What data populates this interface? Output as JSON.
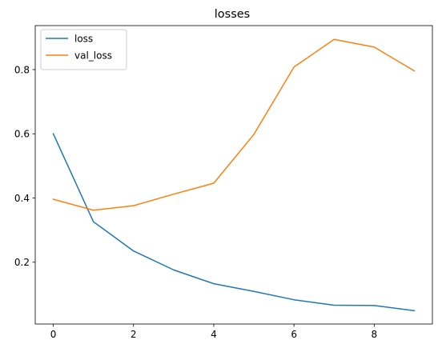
{
  "chart_data": {
    "type": "line",
    "title": "losses",
    "xlabel": "",
    "ylabel": "",
    "x": [
      0,
      1,
      2,
      3,
      4,
      5,
      6,
      7,
      8,
      9
    ],
    "xlim": [
      -0.45,
      9.45
    ],
    "ylim": [
      0.0075,
      0.937
    ],
    "xticks": [
      0,
      2,
      4,
      6,
      8
    ],
    "yticks": [
      0.2,
      0.4,
      0.6,
      0.8
    ],
    "xtick_labels": [
      "0",
      "2",
      "4",
      "6",
      "8"
    ],
    "ytick_labels": [
      "0.2",
      "0.4",
      "0.6",
      "0.8"
    ],
    "grid": false,
    "legend_position": "top-left",
    "series": [
      {
        "name": "loss",
        "color": "#1f77b4",
        "values": [
          0.6,
          0.326,
          0.235,
          0.176,
          0.133,
          0.109,
          0.083,
          0.066,
          0.065,
          0.049
        ]
      },
      {
        "name": "val_loss",
        "color": "#ff7f0e",
        "values": [
          0.396,
          0.362,
          0.376,
          0.412,
          0.446,
          0.598,
          0.808,
          0.894,
          0.87,
          0.796
        ]
      }
    ]
  }
}
